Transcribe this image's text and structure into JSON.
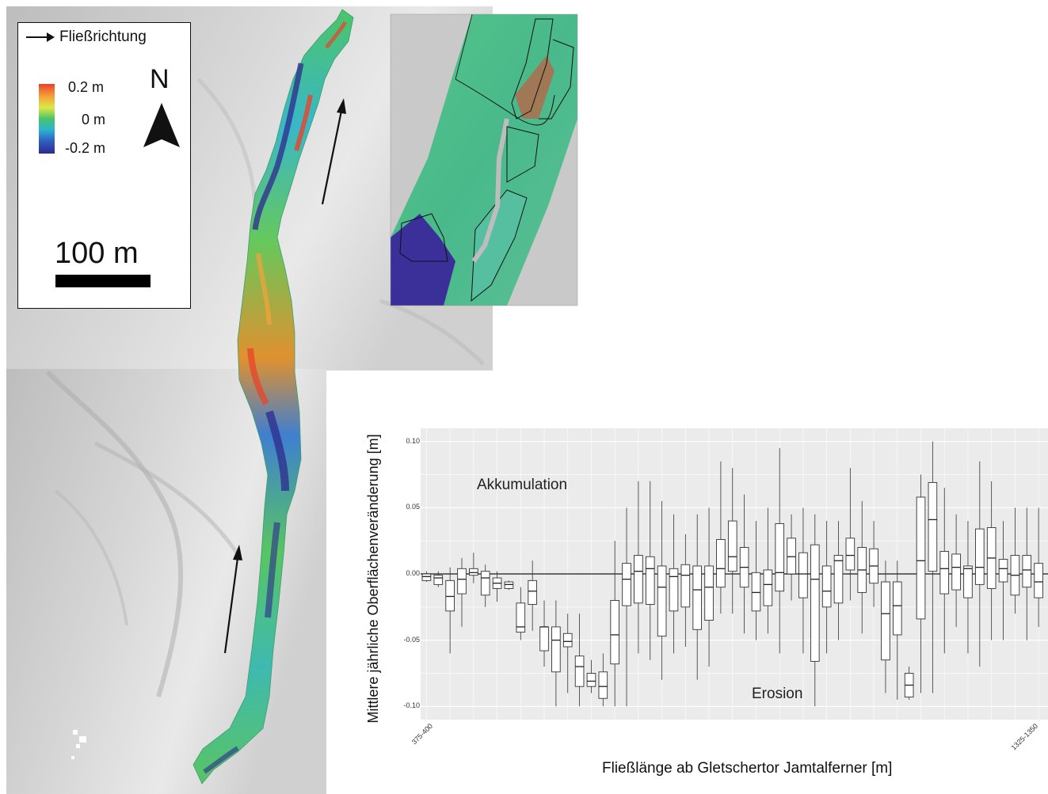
{
  "legend": {
    "flow_label": "Fließrichtung",
    "ramp_max": "0.2 m",
    "ramp_mid": "0 m",
    "ramp_min": "-0.2 m",
    "north": "N",
    "scale": "100 m"
  },
  "colors": {
    "hillshade": "#c9c9c9",
    "accent_red": "#e8432a",
    "accent_blue": "#2d2a8d",
    "accent_green": "#49c36a"
  },
  "chart_data": {
    "type": "box",
    "xlabel": "Fließlänge ab Gletschertor Jamtalferner [m]",
    "ylabel": "Mittlere jährliche Oberflächenveränderung [m]",
    "ylim": [
      -0.11,
      0.11
    ],
    "yticks": [
      "0.10",
      "0.05",
      "0.00",
      "-0.05",
      "-0.10"
    ],
    "x_tick_first": "375-400",
    "x_tick_last": "1325-1350",
    "annotations": {
      "upper": "Akkumulation",
      "lower": "Erosion"
    },
    "grid": true,
    "boxes": [
      {
        "lo": -0.006,
        "q1": -0.005,
        "med": -0.002,
        "q3": 0.0,
        "hi": 0.002
      },
      {
        "lo": -0.01,
        "q1": -0.008,
        "med": -0.003,
        "q3": -0.001,
        "hi": 0.002
      },
      {
        "lo": -0.06,
        "q1": -0.028,
        "med": -0.017,
        "q3": -0.005,
        "hi": 0.005
      },
      {
        "lo": -0.04,
        "q1": -0.015,
        "med": -0.004,
        "q3": 0.004,
        "hi": 0.012
      },
      {
        "lo": -0.007,
        "q1": -0.001,
        "med": 0.001,
        "q3": 0.004,
        "hi": 0.016
      },
      {
        "lo": -0.025,
        "q1": -0.016,
        "med": -0.003,
        "q3": 0.002,
        "hi": 0.007
      },
      {
        "lo": -0.021,
        "q1": -0.011,
        "med": -0.007,
        "q3": -0.003,
        "hi": 0.002
      },
      {
        "lo": -0.012,
        "q1": -0.011,
        "med": -0.008,
        "q3": -0.006,
        "hi": -0.005
      },
      {
        "lo": -0.05,
        "q1": -0.044,
        "med": -0.04,
        "q3": -0.022,
        "hi": -0.01
      },
      {
        "lo": -0.043,
        "q1": -0.023,
        "med": -0.013,
        "q3": -0.005,
        "hi": 0.01
      },
      {
        "lo": -0.07,
        "q1": -0.058,
        "med": -0.04,
        "q3": -0.04,
        "hi": -0.02
      },
      {
        "lo": -0.1,
        "q1": -0.074,
        "med": -0.05,
        "q3": -0.04,
        "hi": -0.02
      },
      {
        "lo": -0.09,
        "q1": -0.055,
        "med": -0.051,
        "q3": -0.045,
        "hi": -0.03
      },
      {
        "lo": -0.1,
        "q1": -0.085,
        "med": -0.07,
        "q3": -0.062,
        "hi": -0.03
      },
      {
        "lo": -0.09,
        "q1": -0.085,
        "med": -0.081,
        "q3": -0.075,
        "hi": -0.065
      },
      {
        "lo": -0.1,
        "q1": -0.094,
        "med": -0.085,
        "q3": -0.074,
        "hi": -0.06
      },
      {
        "lo": -0.1,
        "q1": -0.068,
        "med": -0.046,
        "q3": -0.02,
        "hi": 0.025
      },
      {
        "lo": -0.1,
        "q1": -0.024,
        "med": -0.004,
        "q3": 0.008,
        "hi": 0.05
      },
      {
        "lo": -0.06,
        "q1": -0.022,
        "med": 0.002,
        "q3": 0.014,
        "hi": 0.07
      },
      {
        "lo": -0.065,
        "q1": -0.023,
        "med": 0.004,
        "q3": 0.013,
        "hi": 0.07
      },
      {
        "lo": -0.08,
        "q1": -0.047,
        "med": -0.01,
        "q3": 0.006,
        "hi": 0.055
      },
      {
        "lo": -0.06,
        "q1": -0.028,
        "med": -0.002,
        "q3": 0.004,
        "hi": 0.045
      },
      {
        "lo": -0.055,
        "q1": -0.025,
        "med": -0.001,
        "q3": 0.007,
        "hi": 0.03
      },
      {
        "lo": -0.08,
        "q1": -0.042,
        "med": -0.012,
        "q3": 0.006,
        "hi": 0.045
      },
      {
        "lo": -0.07,
        "q1": -0.035,
        "med": -0.01,
        "q3": 0.006,
        "hi": 0.05
      },
      {
        "lo": -0.03,
        "q1": -0.01,
        "med": 0.004,
        "q3": 0.026,
        "hi": 0.085
      },
      {
        "lo": -0.03,
        "q1": 0.002,
        "med": 0.013,
        "q3": 0.04,
        "hi": 0.08
      },
      {
        "lo": -0.045,
        "q1": -0.01,
        "med": 0.005,
        "q3": 0.02,
        "hi": 0.06
      },
      {
        "lo": -0.05,
        "q1": -0.028,
        "med": -0.014,
        "q3": 0.001,
        "hi": 0.04
      },
      {
        "lo": -0.045,
        "q1": -0.024,
        "med": -0.008,
        "q3": 0.003,
        "hi": 0.05
      },
      {
        "lo": -0.06,
        "q1": -0.013,
        "med": 0.001,
        "q3": 0.038,
        "hi": 0.095
      },
      {
        "lo": -0.02,
        "q1": 0.0,
        "med": 0.013,
        "q3": 0.027,
        "hi": 0.045
      },
      {
        "lo": -0.06,
        "q1": -0.018,
        "med": 0.0,
        "q3": 0.016,
        "hi": 0.05
      },
      {
        "lo": -0.1,
        "q1": -0.066,
        "med": -0.004,
        "q3": 0.022,
        "hi": 0.045
      },
      {
        "lo": -0.06,
        "q1": -0.025,
        "med": -0.013,
        "q3": 0.006,
        "hi": 0.04
      },
      {
        "lo": -0.05,
        "q1": -0.022,
        "med": 0.01,
        "q3": 0.014,
        "hi": 0.04
      },
      {
        "lo": -0.02,
        "q1": 0.003,
        "med": 0.014,
        "q3": 0.027,
        "hi": 0.08
      },
      {
        "lo": -0.045,
        "q1": -0.014,
        "med": 0.003,
        "q3": 0.02,
        "hi": 0.055
      },
      {
        "lo": -0.025,
        "q1": -0.007,
        "med": 0.006,
        "q3": 0.019,
        "hi": 0.04
      },
      {
        "lo": -0.09,
        "q1": -0.065,
        "med": -0.03,
        "q3": -0.006,
        "hi": 0.01
      },
      {
        "lo": -0.095,
        "q1": -0.046,
        "med": -0.024,
        "q3": -0.006,
        "hi": 0.01
      },
      {
        "lo": -0.095,
        "q1": -0.093,
        "med": -0.084,
        "q3": -0.075,
        "hi": -0.07
      },
      {
        "lo": -0.09,
        "q1": -0.034,
        "med": 0.01,
        "q3": 0.058,
        "hi": 0.075
      },
      {
        "lo": -0.09,
        "q1": 0.002,
        "med": 0.041,
        "q3": 0.069,
        "hi": 0.1
      },
      {
        "lo": -0.06,
        "q1": -0.015,
        "med": 0.004,
        "q3": 0.017,
        "hi": 0.065
      },
      {
        "lo": -0.04,
        "q1": -0.012,
        "med": 0.005,
        "q3": 0.015,
        "hi": 0.045
      },
      {
        "lo": -0.06,
        "q1": -0.018,
        "med": 0.004,
        "q3": 0.006,
        "hi": 0.04
      },
      {
        "lo": -0.07,
        "q1": -0.008,
        "med": 0.005,
        "q3": 0.034,
        "hi": 0.085
      },
      {
        "lo": -0.05,
        "q1": -0.011,
        "med": 0.012,
        "q3": 0.035,
        "hi": 0.07
      },
      {
        "lo": -0.05,
        "q1": -0.006,
        "med": 0.004,
        "q3": 0.011,
        "hi": 0.04
      },
      {
        "lo": -0.03,
        "q1": -0.016,
        "med": -0.001,
        "q3": 0.014,
        "hi": 0.05
      },
      {
        "lo": -0.05,
        "q1": -0.01,
        "med": 0.003,
        "q3": 0.014,
        "hi": 0.05
      },
      {
        "lo": -0.04,
        "q1": -0.018,
        "med": -0.006,
        "q3": 0.008,
        "hi": 0.05
      }
    ]
  }
}
